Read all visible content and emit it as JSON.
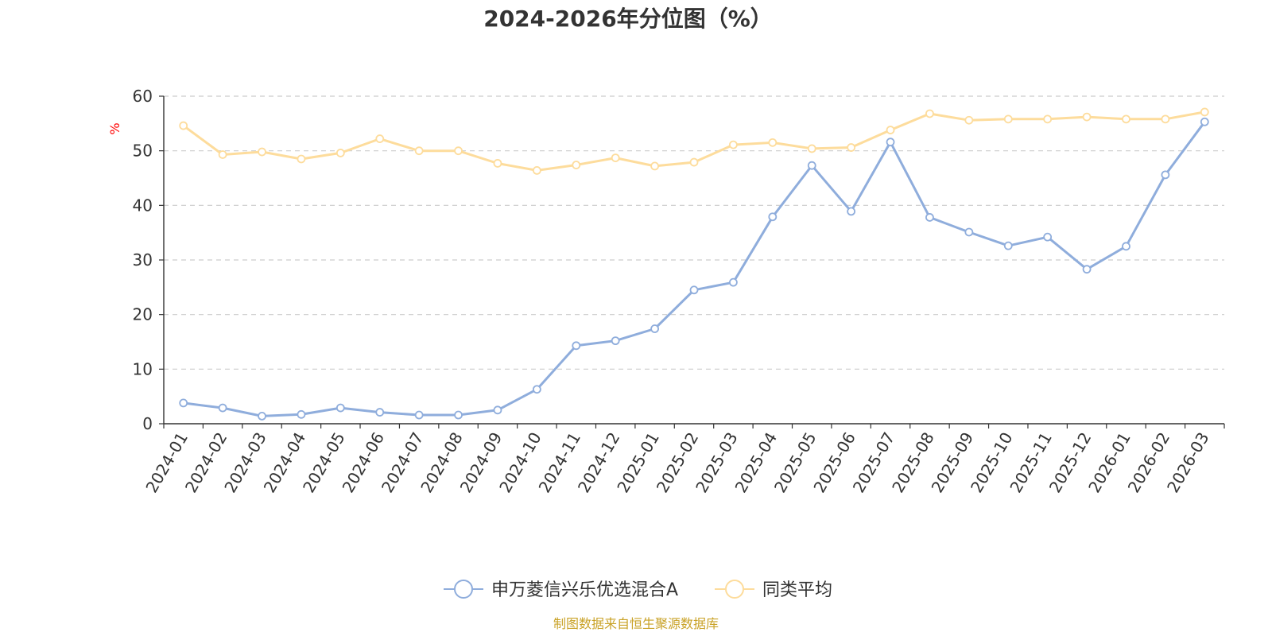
{
  "chart_data": {
    "type": "line",
    "title": "2024-2026年分位图（%）",
    "ylabel": "%",
    "xlabel": "",
    "ylim": [
      0,
      60
    ],
    "yticks": [
      0,
      10,
      20,
      30,
      40,
      50,
      60
    ],
    "grid": true,
    "legend_position": "bottom-center",
    "categories": [
      "2024-01",
      "2024-02",
      "2024-03",
      "2024-04",
      "2024-05",
      "2024-06",
      "2024-07",
      "2024-08",
      "2024-09",
      "2024-10",
      "2024-11",
      "2024-12",
      "2025-01",
      "2025-02",
      "2025-03",
      "2025-04",
      "2025-05",
      "2025-06",
      "2025-07",
      "2025-08",
      "2025-09",
      "2025-10",
      "2025-11",
      "2025-12",
      "2026-01",
      "2026-02",
      "2026-03"
    ],
    "series": [
      {
        "name": "申万菱信兴乐优选混合A",
        "color": "#8faddc",
        "values": [
          3.8,
          2.9,
          1.4,
          1.7,
          2.9,
          2.1,
          1.6,
          1.6,
          2.5,
          6.3,
          14.3,
          15.2,
          17.4,
          24.5,
          25.9,
          37.9,
          47.3,
          38.9,
          51.6,
          37.8,
          35.1,
          32.6,
          34.2,
          28.3,
          32.5,
          45.6,
          55.3
        ]
      },
      {
        "name": "同类平均",
        "color": "#fddc9c",
        "values": [
          54.6,
          49.3,
          49.8,
          48.5,
          49.6,
          52.2,
          50.0,
          50.0,
          47.7,
          46.4,
          47.4,
          48.7,
          47.2,
          47.9,
          51.1,
          51.5,
          50.4,
          50.6,
          53.8,
          56.8,
          55.6,
          55.8,
          55.8,
          56.2,
          55.8,
          55.8,
          57.1
        ]
      }
    ]
  },
  "source_note": "制图数据来自恒生聚源数据库"
}
